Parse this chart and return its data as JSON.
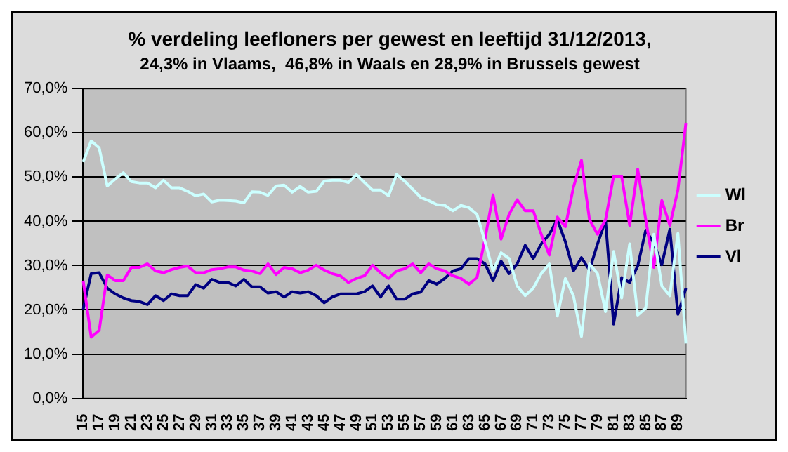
{
  "chart_data": {
    "type": "line",
    "title": "% verdeling leefloners per gewest en leeftijd 31/12/2013,",
    "subtitle": "24,3% in Vlaams,  46,8% in Waals en 28,9% in Brussels gewest",
    "categories": [
      "15",
      null,
      "17",
      null,
      "19",
      null,
      "21",
      null,
      "23",
      null,
      "25",
      null,
      "27",
      null,
      "29",
      null,
      "31",
      null,
      "33",
      null,
      "35",
      null,
      "37",
      null,
      "39",
      null,
      "41",
      null,
      "43",
      null,
      "45",
      null,
      "47",
      null,
      "49",
      null,
      "51",
      null,
      "53",
      null,
      "55",
      null,
      "57",
      null,
      "59",
      null,
      "61",
      null,
      "63",
      null,
      "65",
      null,
      "67",
      null,
      "69",
      null,
      "71",
      null,
      "73",
      null,
      "75",
      null,
      "77",
      null,
      "79",
      null,
      "81",
      null,
      "83",
      null,
      "85",
      null,
      "87",
      null,
      "89",
      null
    ],
    "series": [
      {
        "name": "Wl",
        "color": "#ccffff",
        "values": [
          53.4,
          58.2,
          56.6,
          48,
          49.6,
          51,
          49,
          48.7,
          48.7,
          47.6,
          49.3,
          47.6,
          47.6,
          46.8,
          45.8,
          46.2,
          44.4,
          44.8,
          44.7,
          44.6,
          44.2,
          46.7,
          46.6,
          45.9,
          48,
          48.2,
          46.6,
          47.9,
          46.6,
          46.8,
          49.1,
          49.3,
          49.3,
          48.8,
          50.6,
          48.8,
          47.1,
          47.1,
          45.8,
          50.6,
          49.1,
          47.3,
          45.4,
          44.7,
          43.8,
          43.6,
          42.4,
          43.6,
          43.1,
          41.6,
          35.4,
          28.8,
          32.9,
          31.6,
          25.4,
          23.2,
          24.9,
          28.2,
          30.4,
          18.6,
          27.1,
          23.2,
          14,
          30.4,
          28.2,
          19.6,
          33.2,
          22.7,
          34.9,
          18.8,
          20.4,
          37.1,
          25.4,
          23.2,
          37.3,
          12.4
        ]
      },
      {
        "name": "Br",
        "color": "#ff00ff",
        "values": [
          26.6,
          13.8,
          15.4,
          27.9,
          26.6,
          26.6,
          29.6,
          29.6,
          30.4,
          28.8,
          28.4,
          29.1,
          29.6,
          29.9,
          28.4,
          28.4,
          29.1,
          29.3,
          29.7,
          29.7,
          29,
          28.8,
          28.2,
          30.4,
          28,
          29.6,
          29.3,
          28.4,
          29,
          30.1,
          29,
          28.2,
          27.7,
          26.2,
          27.1,
          27.7,
          30.1,
          28.4,
          27.1,
          28.8,
          29.3,
          30.4,
          28.4,
          30.4,
          29.3,
          28.8,
          27.7,
          27.1,
          25.8,
          27.3,
          36,
          46,
          36,
          41.6,
          44.9,
          42.4,
          42.4,
          37.1,
          32.4,
          41,
          38.8,
          47.7,
          53.8,
          40.4,
          37.1,
          40.4,
          50.2,
          50.2,
          39.1,
          51.8,
          40.4,
          29.6,
          44.7,
          39.1,
          47.1,
          62.3
        ]
      },
      {
        "name": "Vl",
        "color": "#000080",
        "values": [
          20.1,
          28.2,
          28.4,
          24.9,
          23.6,
          22.7,
          22.1,
          21.9,
          21.2,
          23.2,
          22.1,
          23.6,
          23.2,
          23.2,
          25.7,
          24.9,
          26.9,
          26.2,
          26.2,
          25.4,
          26.9,
          25.2,
          25.2,
          23.8,
          24.1,
          22.9,
          24.1,
          23.8,
          24.1,
          23.2,
          21.6,
          22.9,
          23.6,
          23.6,
          23.6,
          24.1,
          25.4,
          22.9,
          25.4,
          22.4,
          22.4,
          23.6,
          24,
          26.6,
          25.8,
          27.1,
          28.8,
          29.3,
          31.6,
          31.6,
          30.4,
          26.6,
          31,
          28.2,
          30.4,
          34.6,
          31.6,
          34.9,
          37.1,
          40.4,
          35.4,
          28.8,
          31.8,
          29,
          34.9,
          40.2,
          16.8,
          27.3,
          26.2,
          29.9,
          38,
          35.1,
          30.2,
          38.2,
          19,
          24.9
        ]
      }
    ],
    "ylim": [
      0,
      70
    ],
    "yticks": [
      {
        "value": 0,
        "label": "0,0%"
      },
      {
        "value": 10,
        "label": "10,0%"
      },
      {
        "value": 20,
        "label": "20,0%"
      },
      {
        "value": 30,
        "label": "30,0%"
      },
      {
        "value": 40,
        "label": "40,0%"
      },
      {
        "value": 50,
        "label": "50,0%"
      },
      {
        "value": 60,
        "label": "60,0%"
      },
      {
        "value": 70,
        "label": "70,0%"
      }
    ],
    "grid": "y",
    "legend": "right",
    "marker": "none",
    "line_style": "solid"
  }
}
